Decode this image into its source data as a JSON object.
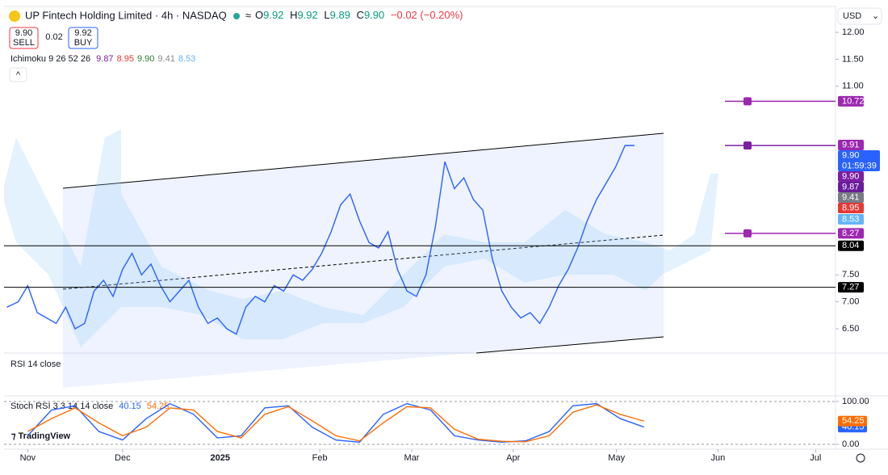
{
  "header": {
    "symbol": "UP Fintech Holding Limited · 4h · NASDAQ",
    "ohlc": [
      {
        "label": "O",
        "value": "9.92"
      },
      {
        "label": "H",
        "value": "9.92"
      },
      {
        "label": "L",
        "value": "9.89"
      },
      {
        "label": "C",
        "value": "9.90"
      }
    ],
    "change": "−0.02 (−0.20%)",
    "currency": "USD"
  },
  "trade": {
    "sell_price": "9.90",
    "sell": "SELL",
    "spread": "0.02",
    "buy_price": "9.92",
    "buy": "BUY"
  },
  "indicators": {
    "ichimoku": {
      "name": "Ichimoku 9 26 52 26",
      "values": [
        {
          "text": "9.87",
          "color": "#7b1fa2"
        },
        {
          "text": "8.95",
          "color": "#e53935"
        },
        {
          "text": "9.90",
          "color": "#2e7d32"
        },
        {
          "text": "9.41",
          "color": "#888888"
        },
        {
          "text": "8.53",
          "color": "#64b5f6"
        }
      ]
    },
    "rsi": "RSI 14 close",
    "stoch": "Stoch RSI 3 3 14 14 close",
    "countdown": "01:59:39"
  },
  "chart_data": [
    {
      "type": "line",
      "xlim": [
        -0.25,
        8.52
      ],
      "ylim": [
        6.05,
        12.48
      ],
      "xticks": [
        {
          "value": 0,
          "label": "Nov"
        },
        {
          "value": 1,
          "label": "Dec"
        },
        {
          "value": 2.03,
          "label": "2025"
        },
        {
          "value": 3.08,
          "label": "Feb"
        },
        {
          "value": 4.05,
          "label": "Mar"
        },
        {
          "value": 5.12,
          "label": "Apr"
        },
        {
          "value": 6.21,
          "label": "May"
        },
        {
          "value": 7.28,
          "label": "Jun"
        },
        {
          "value": 8.31,
          "label": "Jul"
        }
      ],
      "yticks": [
        {
          "value": 12,
          "label": "12.00"
        },
        {
          "value": 11.5,
          "label": "11.50"
        },
        {
          "value": 11,
          "label": "11.00"
        },
        {
          "value": 7.5,
          "label": "7.50"
        },
        {
          "value": 7,
          "label": "7.00"
        },
        {
          "value": 6.5,
          "label": "6.50"
        }
      ],
      "x": [
        -0.22,
        -0.1,
        0,
        0.1,
        0.2,
        0.3,
        0.4,
        0.5,
        0.6,
        0.7,
        0.8,
        0.9,
        1,
        1.1,
        1.2,
        1.3,
        1.4,
        1.5,
        1.6,
        1.7,
        1.8,
        1.9,
        2,
        2.1,
        2.2,
        2.3,
        2.4,
        2.5,
        2.6,
        2.7,
        2.8,
        2.9,
        3,
        3.1,
        3.2,
        3.3,
        3.4,
        3.5,
        3.6,
        3.7,
        3.8,
        3.9,
        4,
        4.1,
        4.2,
        4.3,
        4.4,
        4.5,
        4.6,
        4.7,
        4.8,
        4.9,
        5,
        5.1,
        5.2,
        5.3,
        5.4,
        5.5,
        5.6,
        5.7,
        5.8,
        5.9,
        6,
        6.1,
        6.2,
        6.3,
        6.4
      ],
      "series": [
        {
          "color": "#2962ff",
          "values": [
            6.9,
            7.0,
            7.3,
            6.8,
            6.7,
            6.6,
            6.9,
            6.5,
            6.6,
            7.2,
            7.4,
            7.1,
            7.6,
            7.9,
            7.5,
            7.7,
            7.3,
            7.0,
            7.2,
            7.4,
            6.9,
            6.6,
            6.7,
            6.5,
            6.4,
            6.9,
            7.1,
            7.0,
            7.3,
            7.2,
            7.5,
            7.4,
            7.6,
            7.9,
            8.3,
            8.8,
            9.0,
            8.5,
            8.1,
            8.0,
            8.3,
            7.6,
            7.2,
            7.1,
            7.5,
            8.4,
            9.6,
            9.1,
            9.3,
            8.9,
            8.7,
            7.8,
            7.2,
            6.9,
            6.7,
            6.8,
            6.6,
            6.9,
            7.3,
            7.6,
            8.0,
            8.5,
            8.9,
            9.2,
            9.5,
            9.9,
            9.9
          ]
        }
      ],
      "price_labels": [
        {
          "value": 10.72,
          "label": "10.72",
          "color": "#9c27b0",
          "line": true
        },
        {
          "value": 9.91,
          "label": "9.91",
          "color": "#9c27b0"
        },
        {
          "value": 9.9,
          "label": "9.90",
          "color": "#2962ff",
          "countdown": true
        },
        {
          "value": 9.9,
          "label": "9.90",
          "color": "#7b1fa2",
          "line": true
        },
        {
          "value": 9.87,
          "label": "9.87",
          "color": "#6a1b9a"
        },
        {
          "value": 9.41,
          "label": "9.41",
          "color": "#787b86"
        },
        {
          "value": 8.95,
          "label": "8.95",
          "color": "#e53935"
        },
        {
          "value": 8.53,
          "label": "8.53",
          "color": "#64b5f6"
        },
        {
          "value": 8.27,
          "label": "8.27",
          "color": "#9c27b0",
          "line": true
        },
        {
          "value": 8.04,
          "label": "8.04",
          "color": "#000000",
          "hline": true
        },
        {
          "value": 7.27,
          "label": "7.27",
          "color": "#000000",
          "hline": true
        }
      ]
    },
    {
      "type": "line",
      "xlim": [
        -0.25,
        8.52
      ],
      "ylim": [
        0,
        100
      ],
      "yticks": [
        {
          "value": 100,
          "label": "100.00"
        },
        {
          "value": 0,
          "label": "0.00"
        }
      ],
      "x": [
        0,
        0.25,
        0.5,
        0.75,
        1,
        1.25,
        1.5,
        1.75,
        2,
        2.25,
        2.5,
        2.75,
        3,
        3.25,
        3.5,
        3.75,
        4,
        4.25,
        4.5,
        4.75,
        5,
        5.25,
        5.5,
        5.75,
        6,
        6.25,
        6.5
      ],
      "series": [
        {
          "name": "40.15",
          "color": "#2962ff",
          "values": [
            20,
            80,
            90,
            30,
            10,
            60,
            95,
            70,
            15,
            20,
            85,
            90,
            40,
            10,
            5,
            70,
            95,
            80,
            20,
            10,
            5,
            8,
            30,
            90,
            95,
            60,
            40.15
          ]
        },
        {
          "name": "54.25",
          "color": "#ff6d00",
          "values": [
            30,
            60,
            85,
            50,
            20,
            40,
            85,
            80,
            30,
            15,
            70,
            88,
            55,
            20,
            8,
            50,
            88,
            85,
            35,
            12,
            7,
            6,
            20,
            75,
            92,
            70,
            54.25
          ]
        }
      ]
    }
  ]
}
